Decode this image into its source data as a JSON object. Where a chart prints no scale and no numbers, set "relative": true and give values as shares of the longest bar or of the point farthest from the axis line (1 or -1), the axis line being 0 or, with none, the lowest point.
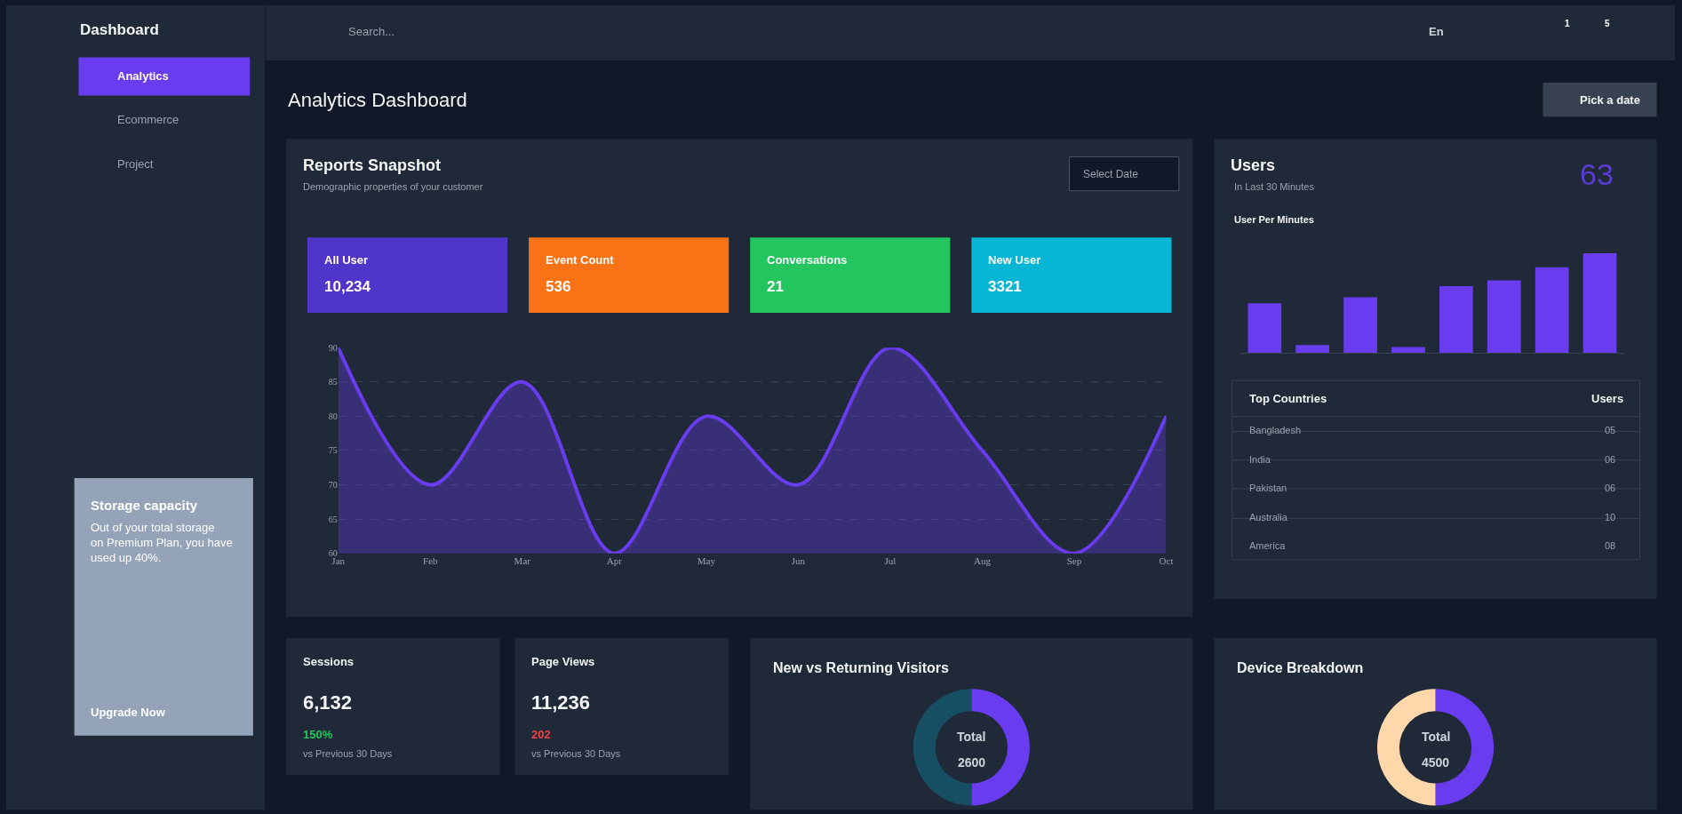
{
  "chart_data": [
    {
      "type": "other",
      "title": "Analytics Dashboard",
      "annotations": [
        "Dashboard",
        "Analytics",
        "Ecommerce",
        "Project",
        "Search...",
        "En",
        "1",
        "5",
        "Pick a date",
        "Storage capacity",
        "Out of your total storage on Premium Plan, you have used up 40%.",
        "Upgrade Now",
        "Sessions",
        "6,132",
        "150%",
        "vs Previous 30 Days",
        "Page Views",
        "11,236",
        "202",
        "vs Previous 30 Days"
      ]
    },
    {
      "type": "area",
      "title": "Reports Snapshot",
      "subtitle": "Demographic properties of your customer",
      "annotations": [
        "Select Date",
        "All User",
        "10,234",
        "Event Count",
        "536",
        "Conversations",
        "21",
        "New User",
        "3321"
      ],
      "categories": [
        "Jan",
        "Feb",
        "Mar",
        "Apr",
        "May",
        "Jun",
        "Jul",
        "Aug",
        "Sep",
        "Oct"
      ],
      "values": [
        90,
        70,
        85,
        60,
        80,
        70,
        90,
        75,
        60,
        80
      ],
      "color": "#6a3cf0",
      "ylim": [
        60,
        90
      ],
      "yticks": [
        60,
        65,
        70,
        75,
        80,
        85,
        90
      ],
      "grid": "y",
      "marker": "none"
    },
    {
      "type": "bar",
      "title": "Users",
      "subtitle": "In Last 30 Minutes",
      "annotations": [
        "63",
        "User Per Minutes",
        "Top Countries",
        "Users",
        "Bangladesh",
        "05",
        "India",
        "06",
        "Pakistan",
        "06",
        "Australia",
        "10",
        "America",
        "08"
      ],
      "categories": [
        null,
        null,
        null,
        null,
        null,
        null,
        null,
        null
      ],
      "values": [
        0.5,
        0.08,
        0.56,
        0.06,
        0.67,
        0.73,
        0.86,
        1
      ],
      "color": "#6a3cf0",
      "relative": true
    },
    {
      "type": "donut",
      "title": "New vs Returning Visitors",
      "annotations": [
        "Total",
        "2600"
      ],
      "categories": [
        null,
        null
      ],
      "values": [
        50,
        50
      ],
      "colors": [
        "#6a3cf0",
        "#164e63"
      ]
    },
    {
      "type": "donut",
      "title": "Device Breakdown",
      "annotations": [
        "Total",
        "4500"
      ],
      "categories": [
        null,
        null
      ],
      "values": [
        50,
        50
      ],
      "colors": [
        "#6a3cf0",
        "#fed7aa"
      ]
    }
  ]
}
